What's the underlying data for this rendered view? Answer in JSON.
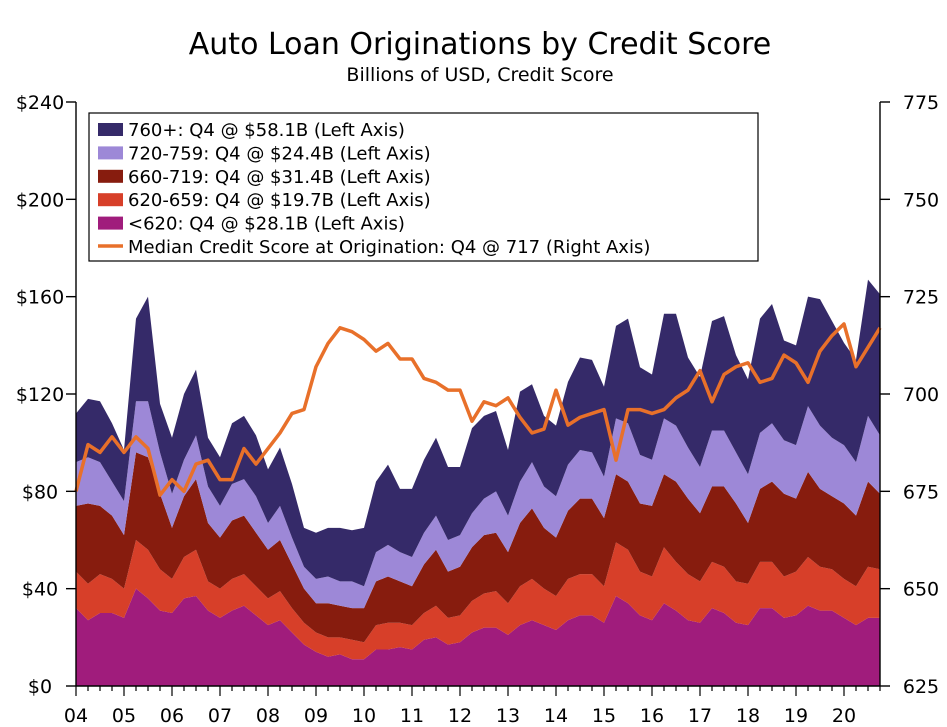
{
  "chart_data": {
    "type": "area",
    "title": "Auto Loan Originations by Credit Score",
    "subtitle": "Billions of USD, Credit Score",
    "x_tick_labels": [
      "04",
      "05",
      "06",
      "07",
      "08",
      "09",
      "10",
      "11",
      "12",
      "13",
      "14",
      "15",
      "16",
      "17",
      "18",
      "19",
      "20"
    ],
    "y_left": {
      "ylim": [
        0,
        240
      ],
      "ticks": [
        0,
        40,
        80,
        120,
        160,
        200,
        240
      ],
      "tick_labels": [
        "$0",
        "$40",
        "$80",
        "$120",
        "$160",
        "$200",
        "$240"
      ]
    },
    "y_right": {
      "ylim": [
        625,
        775
      ],
      "ticks": [
        625,
        650,
        675,
        700,
        725,
        750,
        775
      ],
      "tick_labels": [
        "625",
        "650",
        "675",
        "700",
        "725",
        "750",
        "775"
      ]
    },
    "quarters_start": "2004Q1",
    "stack_order_bottom_to_top": [
      "<620",
      "620-659",
      "660-719",
      "720-759",
      "760+"
    ],
    "series": [
      {
        "name": "<620",
        "legend": "<620: Q4 @ $28.1B (Left Axis)",
        "color": "#a01c7c",
        "axis": "left",
        "values": [
          32,
          27,
          30,
          30,
          28,
          40,
          36,
          31,
          30,
          36,
          37,
          31,
          28,
          31,
          33,
          29,
          25,
          27,
          22,
          17,
          14,
          12,
          13,
          11,
          11,
          15,
          15,
          16,
          15,
          19,
          20,
          17,
          18,
          22,
          24,
          24,
          21,
          25,
          27,
          25,
          23,
          27,
          29,
          29,
          26,
          37,
          34,
          29,
          27,
          34,
          31,
          27,
          26,
          32,
          30,
          26,
          25,
          32,
          32,
          28,
          29,
          33,
          31,
          31,
          28,
          25,
          28,
          28
        ]
      },
      {
        "name": "620-659",
        "legend": "620-659: Q4 @ $19.7B (Left Axis)",
        "color": "#d73f29",
        "axis": "left",
        "values": [
          15,
          15,
          16,
          14,
          12,
          20,
          20,
          17,
          14,
          17,
          19,
          12,
          12,
          13,
          13,
          12,
          11,
          12,
          10,
          9,
          8,
          8,
          7,
          8,
          7,
          10,
          11,
          10,
          10,
          11,
          13,
          11,
          11,
          13,
          14,
          15,
          13,
          16,
          17,
          15,
          14,
          17,
          17,
          17,
          15,
          22,
          22,
          18,
          18,
          23,
          20,
          19,
          17,
          19,
          19,
          17,
          17,
          19,
          19,
          17,
          18,
          20,
          18,
          17,
          16,
          16,
          21,
          20
        ]
      },
      {
        "name": "660-719",
        "legend": "660-719: Q4 @ $31.4B (Left Axis)",
        "color": "#871c0e",
        "axis": "left",
        "values": [
          27,
          33,
          28,
          26,
          22,
          36,
          38,
          31,
          21,
          25,
          29,
          24,
          21,
          24,
          24,
          22,
          20,
          21,
          18,
          14,
          12,
          14,
          13,
          13,
          14,
          18,
          19,
          17,
          16,
          20,
          23,
          19,
          20,
          22,
          24,
          24,
          21,
          26,
          29,
          25,
          24,
          28,
          31,
          31,
          28,
          28,
          28,
          28,
          29,
          30,
          33,
          31,
          28,
          31,
          33,
          32,
          25,
          30,
          33,
          34,
          30,
          35,
          32,
          30,
          31,
          29,
          35,
          31
        ]
      },
      {
        "name": "720-759",
        "legend": "720-759: Q4 @ $24.4B (Left Axis)",
        "color": "#9d88d7",
        "axis": "left",
        "values": [
          18,
          19,
          18,
          14,
          14,
          21,
          23,
          17,
          14,
          15,
          18,
          15,
          13,
          15,
          15,
          15,
          11,
          14,
          11,
          9,
          10,
          11,
          10,
          11,
          9,
          12,
          13,
          12,
          12,
          13,
          14,
          13,
          13,
          14,
          15,
          17,
          15,
          17,
          19,
          17,
          17,
          19,
          20,
          19,
          17,
          23,
          24,
          20,
          19,
          23,
          23,
          21,
          19,
          23,
          23,
          21,
          20,
          23,
          24,
          22,
          22,
          27,
          26,
          24,
          24,
          22,
          27,
          24
        ]
      },
      {
        "name": "760+",
        "legend": "760+: Q4 @ $58.1B (Left Axis)",
        "color": "#352a69",
        "axis": "left",
        "values": [
          20,
          24,
          25,
          24,
          21,
          34,
          43,
          20,
          23,
          27,
          27,
          20,
          20,
          25,
          26,
          25,
          22,
          24,
          22,
          16,
          19,
          20,
          22,
          21,
          24,
          29,
          33,
          26,
          28,
          30,
          32,
          30,
          28,
          35,
          34,
          33,
          27,
          37,
          32,
          29,
          29,
          34,
          38,
          38,
          37,
          38,
          43,
          36,
          35,
          43,
          46,
          37,
          37,
          45,
          47,
          40,
          39,
          47,
          49,
          41,
          41,
          45,
          52,
          48,
          42,
          42,
          56,
          58
        ]
      },
      {
        "name": "Median Credit Score at Origination",
        "legend": "Median Credit Score at Origination: Q4 @ 717 (Right Axis)",
        "color": "#e8702a",
        "axis": "right",
        "type": "line",
        "values": [
          675,
          687,
          685,
          689,
          685,
          689,
          686,
          674,
          678,
          675,
          682,
          683,
          678,
          678,
          686,
          682,
          686,
          690,
          695,
          696,
          707,
          713,
          717,
          716,
          714,
          711,
          713,
          709,
          709,
          704,
          703,
          701,
          701,
          693,
          698,
          697,
          699,
          694,
          690,
          691,
          701,
          692,
          694,
          695,
          696,
          683,
          696,
          696,
          695,
          696,
          699,
          701,
          706,
          698,
          705,
          707,
          708,
          703,
          704,
          710,
          708,
          703,
          711,
          715,
          718,
          707,
          712,
          717
        ]
      }
    ]
  }
}
